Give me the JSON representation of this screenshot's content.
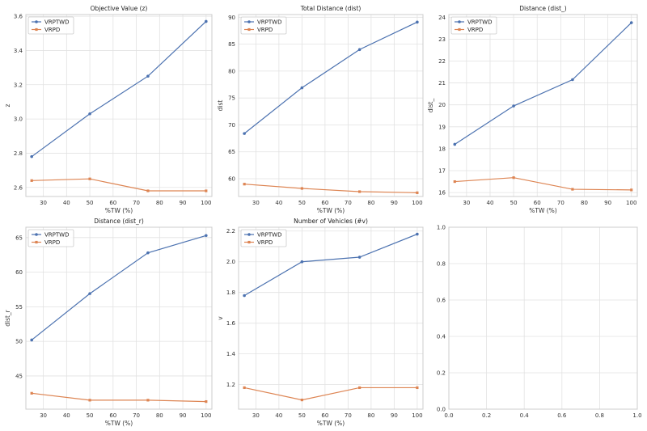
{
  "colors": {
    "VRPTWD": "#4c72b0",
    "VRPD": "#dd8452",
    "grid": "#e2e2e2",
    "frame": "#cccccc",
    "text": "#333333"
  },
  "chart_data": [
    {
      "type": "line",
      "title": "Objective Value (z)",
      "xlabel": "%TW (%)",
      "ylabel": "z",
      "x": [
        25,
        50,
        75,
        100
      ],
      "xlim": [
        22.5,
        102.5
      ],
      "ylim": [
        2.547,
        3.61
      ],
      "xticks": [
        30,
        40,
        50,
        60,
        70,
        80,
        90,
        100
      ],
      "yticks": [
        2.6,
        2.8,
        3.0,
        3.2,
        3.4,
        3.6
      ],
      "ytick_labels": [
        "2.6",
        "2.8",
        "3.0",
        "3.2",
        "3.4",
        "3.6"
      ],
      "grid": true,
      "legend_position": "top-left",
      "series": [
        {
          "name": "VRPTWD",
          "marker": "circle",
          "values": [
            2.78,
            3.03,
            3.25,
            3.57
          ]
        },
        {
          "name": "VRPD",
          "marker": "square",
          "values": [
            2.64,
            2.65,
            2.58,
            2.58
          ]
        }
      ]
    },
    {
      "type": "line",
      "title": "Total Distance (dist)",
      "xlabel": "%TW (%)",
      "ylabel": "dist",
      "x": [
        25,
        50,
        75,
        100
      ],
      "xlim": [
        22.5,
        102.5
      ],
      "ylim": [
        56.7,
        90.5
      ],
      "xticks": [
        30,
        40,
        50,
        60,
        70,
        80,
        90,
        100
      ],
      "yticks": [
        60,
        65,
        70,
        75,
        80,
        85,
        90
      ],
      "ytick_labels": [
        "60",
        "65",
        "70",
        "75",
        "80",
        "85",
        "90"
      ],
      "grid": true,
      "legend_position": "top-left",
      "series": [
        {
          "name": "VRPTWD",
          "marker": "circle",
          "values": [
            68.4,
            76.9,
            84.0,
            89.1
          ]
        },
        {
          "name": "VRPD",
          "marker": "square",
          "values": [
            59.0,
            58.2,
            57.6,
            57.4
          ]
        }
      ]
    },
    {
      "type": "line",
      "title": "Distance (dist_)",
      "xlabel": "%TW (%)",
      "ylabel": "dist_",
      "x": [
        25,
        50,
        75,
        100
      ],
      "xlim": [
        22.5,
        102.5
      ],
      "ylim": [
        15.82,
        24.12
      ],
      "xticks": [
        30,
        40,
        50,
        60,
        70,
        80,
        90,
        100
      ],
      "yticks": [
        16,
        17,
        18,
        19,
        20,
        21,
        22,
        23,
        24
      ],
      "ytick_labels": [
        "16",
        "17",
        "18",
        "19",
        "20",
        "21",
        "22",
        "23",
        "24"
      ],
      "grid": true,
      "legend_position": "top-left",
      "series": [
        {
          "name": "VRPTWD",
          "marker": "circle",
          "values": [
            18.2,
            19.95,
            21.15,
            23.75
          ]
        },
        {
          "name": "VRPD",
          "marker": "square",
          "values": [
            16.5,
            16.68,
            16.15,
            16.12
          ]
        }
      ]
    },
    {
      "type": "line",
      "title": "Distance (dist_r)",
      "xlabel": "%TW (%)",
      "ylabel": "dist_r",
      "x": [
        25,
        50,
        75,
        100
      ],
      "xlim": [
        22.5,
        102.5
      ],
      "ylim": [
        40.2,
        66.5
      ],
      "xticks": [
        30,
        40,
        50,
        60,
        70,
        80,
        90,
        100
      ],
      "yticks": [
        45,
        50,
        55,
        60,
        65
      ],
      "ytick_labels": [
        "45",
        "50",
        "55",
        "60",
        "65"
      ],
      "grid": true,
      "legend_position": "top-left",
      "series": [
        {
          "name": "VRPTWD",
          "marker": "circle",
          "values": [
            50.2,
            56.9,
            62.8,
            65.3
          ]
        },
        {
          "name": "VRPD",
          "marker": "square",
          "values": [
            42.5,
            41.5,
            41.5,
            41.3
          ]
        }
      ]
    },
    {
      "type": "line",
      "title": "Number of Vehicles (#v)",
      "xlabel": "%TW (%)",
      "ylabel": "v",
      "x": [
        25,
        50,
        75,
        100
      ],
      "xlim": [
        22.5,
        102.5
      ],
      "ylim": [
        1.04,
        2.225
      ],
      "xticks": [
        30,
        40,
        50,
        60,
        70,
        80,
        90,
        100
      ],
      "yticks": [
        1.2,
        1.4,
        1.6,
        1.8,
        2.0,
        2.2
      ],
      "ytick_labels": [
        "1.2",
        "1.4",
        "1.6",
        "1.8",
        "2.0",
        "2.2"
      ],
      "grid": true,
      "legend_position": "top-left",
      "series": [
        {
          "name": "VRPTWD",
          "marker": "circle",
          "values": [
            1.78,
            2.0,
            2.03,
            2.18
          ]
        },
        {
          "name": "VRPD",
          "marker": "square",
          "values": [
            1.18,
            1.1,
            1.18,
            1.18
          ]
        }
      ]
    },
    {
      "type": "line",
      "title": "",
      "xlabel": "",
      "ylabel": "",
      "x": [],
      "xlim": [
        0,
        1
      ],
      "ylim": [
        0,
        1
      ],
      "xticks": [
        0.0,
        0.2,
        0.4,
        0.6,
        0.8,
        1.0
      ],
      "xtick_labels": [
        "0.0",
        "0.2",
        "0.4",
        "0.6",
        "0.8",
        "1.0"
      ],
      "yticks": [
        0.0,
        0.2,
        0.4,
        0.6,
        0.8,
        1.0
      ],
      "ytick_labels": [
        "0.0",
        "0.2",
        "0.4",
        "0.6",
        "0.8",
        "1.0"
      ],
      "grid": true,
      "series": []
    }
  ]
}
